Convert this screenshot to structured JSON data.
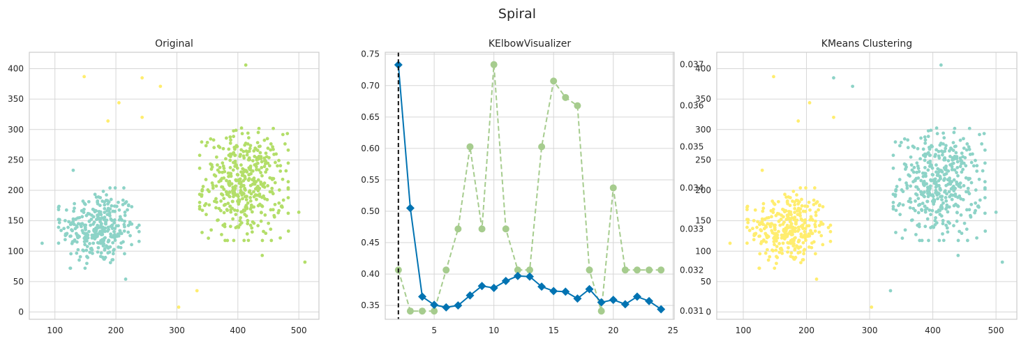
{
  "figure": {
    "title": "Spiral",
    "colors": {
      "teal": "#8dd3c7",
      "green": "#b3de69",
      "yellow": "#ffed6f",
      "blue": "#0173b2",
      "sage": "#a6cc8e",
      "grid": "#d6d6d6",
      "frame": "#cccccc"
    }
  },
  "chart_data": [
    {
      "type": "scatter",
      "title": "Original",
      "xlim": [
        58,
        533
      ],
      "ylim": [
        -12,
        427
      ],
      "xticks": [
        100,
        200,
        300,
        400,
        500
      ],
      "yticks": [
        0,
        50,
        100,
        150,
        200,
        250,
        300,
        350,
        400
      ],
      "grid": true,
      "clusters": [
        {
          "color": "teal",
          "center": [
            172,
            138
          ],
          "spread": [
            30,
            30
          ],
          "count": 320
        },
        {
          "color": "green",
          "center": [
            410,
            210
          ],
          "spread": [
            33,
            42
          ],
          "count": 430
        }
      ],
      "points": [
        {
          "color": "yellow",
          "x": 148,
          "y": 387
        },
        {
          "color": "yellow",
          "x": 243,
          "y": 385
        },
        {
          "color": "yellow",
          "x": 273,
          "y": 371
        },
        {
          "color": "yellow",
          "x": 205,
          "y": 344
        },
        {
          "color": "yellow",
          "x": 243,
          "y": 320
        },
        {
          "color": "yellow",
          "x": 187,
          "y": 314
        },
        {
          "color": "yellow",
          "x": 333,
          "y": 35
        },
        {
          "color": "yellow",
          "x": 303,
          "y": 8
        },
        {
          "color": "green",
          "x": 413,
          "y": 406
        },
        {
          "color": "green",
          "x": 500,
          "y": 164
        },
        {
          "color": "green",
          "x": 510,
          "y": 82
        },
        {
          "color": "green",
          "x": 483,
          "y": 133
        },
        {
          "color": "green",
          "x": 440,
          "y": 93
        },
        {
          "color": "teal",
          "x": 79,
          "y": 113
        },
        {
          "color": "teal",
          "x": 130,
          "y": 233
        },
        {
          "color": "teal",
          "x": 216,
          "y": 54
        }
      ]
    },
    {
      "type": "line",
      "title": "KElbowVisualizer",
      "x": [
        2,
        3,
        4,
        5,
        6,
        7,
        8,
        9,
        10,
        11,
        12,
        13,
        14,
        15,
        16,
        17,
        18,
        19,
        20,
        21,
        22,
        23,
        24
      ],
      "xlim": [
        0.9,
        25.1
      ],
      "xticks": [
        5,
        10,
        15,
        20,
        25
      ],
      "elbow_x": 2,
      "series": [
        {
          "axis": "left",
          "color": "blue",
          "marker": "diamond",
          "values": [
            0.733,
            0.505,
            0.364,
            0.351,
            0.347,
            0.35,
            0.366,
            0.381,
            0.378,
            0.389,
            0.397,
            0.396,
            0.38,
            0.373,
            0.372,
            0.361,
            0.376,
            0.355,
            0.359,
            0.352,
            0.364,
            0.357,
            0.344
          ]
        },
        {
          "axis": "right",
          "color": "sage",
          "marker": "circle",
          "dashed": true,
          "values": [
            0.032,
            0.031,
            0.031,
            0.031,
            0.032,
            0.033,
            0.035,
            0.033,
            0.037,
            0.033,
            0.032,
            0.032,
            0.035,
            0.0366,
            0.0362,
            0.036,
            0.032,
            0.031,
            0.034,
            0.032,
            0.032,
            0.032,
            0.032
          ]
        }
      ],
      "ylim_left": [
        0.328,
        0.753
      ],
      "yticks_left": [
        "0.35",
        "0.40",
        "0.45",
        "0.50",
        "0.55",
        "0.60",
        "0.65",
        "0.70",
        "0.75"
      ],
      "ylim_right": [
        0.0308,
        0.0373
      ],
      "yticks_right": [
        "0.031",
        "0.032",
        "0.033",
        "0.034",
        "0.035",
        "0.036",
        "0.037"
      ],
      "grid": true
    },
    {
      "type": "scatter",
      "title": "KMeans Clustering",
      "xlim": [
        58,
        533
      ],
      "ylim": [
        -12,
        427
      ],
      "xticks": [
        100,
        200,
        300,
        400,
        500
      ],
      "yticks": [
        0,
        50,
        100,
        150,
        200,
        250,
        300,
        350,
        400
      ],
      "grid": true,
      "clusters": [
        {
          "color": "yellow",
          "center": [
            172,
            138
          ],
          "spread": [
            30,
            30
          ],
          "count": 320
        },
        {
          "color": "teal",
          "center": [
            410,
            210
          ],
          "spread": [
            33,
            42
          ],
          "count": 430
        }
      ],
      "points": [
        {
          "color": "yellow",
          "x": 148,
          "y": 387
        },
        {
          "color": "teal",
          "x": 243,
          "y": 385
        },
        {
          "color": "teal",
          "x": 273,
          "y": 371
        },
        {
          "color": "yellow",
          "x": 205,
          "y": 344
        },
        {
          "color": "yellow",
          "x": 243,
          "y": 320
        },
        {
          "color": "yellow",
          "x": 187,
          "y": 314
        },
        {
          "color": "teal",
          "x": 333,
          "y": 35
        },
        {
          "color": "yellow",
          "x": 303,
          "y": 8
        },
        {
          "color": "teal",
          "x": 413,
          "y": 406
        },
        {
          "color": "teal",
          "x": 500,
          "y": 164
        },
        {
          "color": "teal",
          "x": 510,
          "y": 82
        },
        {
          "color": "teal",
          "x": 483,
          "y": 133
        },
        {
          "color": "teal",
          "x": 440,
          "y": 93
        },
        {
          "color": "yellow",
          "x": 79,
          "y": 113
        },
        {
          "color": "yellow",
          "x": 130,
          "y": 233
        },
        {
          "color": "yellow",
          "x": 216,
          "y": 54
        }
      ]
    }
  ]
}
